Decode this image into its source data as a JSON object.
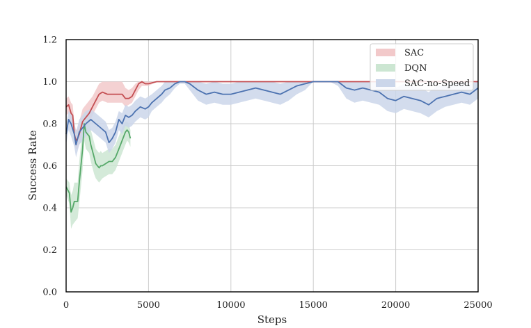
{
  "chart_data": {
    "type": "line",
    "title": "",
    "xlabel": "Steps",
    "ylabel": "Success Rate",
    "xlim": [
      0,
      25000
    ],
    "ylim": [
      0.0,
      1.2
    ],
    "x_ticks": [
      0,
      5000,
      10000,
      15000,
      20000,
      25000
    ],
    "y_ticks": [
      0.0,
      0.2,
      0.4,
      0.6,
      0.8,
      1.0,
      1.2
    ],
    "y_tick_labels": [
      "0.0",
      "0.2",
      "0.4",
      "0.6",
      "0.8",
      "1.0",
      "1.2"
    ],
    "grid": true,
    "legend_position": "top-right",
    "series": [
      {
        "name": "SAC",
        "color": "#c44e52",
        "band_color": "#f2c9ca",
        "x": [
          0,
          150,
          300,
          400,
          500,
          600,
          700,
          800,
          900,
          1000,
          1100,
          1200,
          1400,
          1600,
          1800,
          2000,
          2200,
          2500,
          3000,
          3400,
          3600,
          3800,
          4000,
          4200,
          4400,
          4600,
          4800,
          5000,
          5500,
          6000,
          7000,
          10000,
          15000,
          20000,
          25000
        ],
        "y": [
          0.88,
          0.89,
          0.85,
          0.84,
          0.75,
          0.72,
          0.73,
          0.75,
          0.78,
          0.81,
          0.82,
          0.83,
          0.85,
          0.88,
          0.91,
          0.94,
          0.95,
          0.94,
          0.94,
          0.94,
          0.92,
          0.92,
          0.93,
          0.96,
          0.99,
          1.0,
          0.99,
          0.99,
          1.0,
          1.0,
          1.0,
          1.0,
          1.0,
          1.0,
          1.0
        ],
        "lower": [
          0.84,
          0.85,
          0.8,
          0.78,
          0.7,
          0.68,
          0.68,
          0.7,
          0.72,
          0.74,
          0.76,
          0.78,
          0.8,
          0.84,
          0.87,
          0.9,
          0.91,
          0.9,
          0.9,
          0.9,
          0.88,
          0.89,
          0.9,
          0.93,
          0.96,
          0.98,
          0.98,
          0.98,
          1.0,
          1.0,
          1.0,
          1.0,
          1.0,
          1.0,
          1.0
        ],
        "upper": [
          0.92,
          0.93,
          0.9,
          0.89,
          0.8,
          0.77,
          0.78,
          0.81,
          0.84,
          0.87,
          0.88,
          0.89,
          0.91,
          0.93,
          0.96,
          0.99,
          1.0,
          1.0,
          1.0,
          1.0,
          0.97,
          0.96,
          0.97,
          0.99,
          1.0,
          1.0,
          1.0,
          1.0,
          1.0,
          1.0,
          1.0,
          1.0,
          1.0,
          1.0,
          1.0
        ]
      },
      {
        "name": "DQN",
        "color": "#55a868",
        "band_color": "#cce6d2",
        "x": [
          0,
          200,
          300,
          400,
          500,
          600,
          700,
          800,
          900,
          1000,
          1100,
          1200,
          1300,
          1400,
          1500,
          1600,
          1700,
          1800,
          1900,
          2000,
          2100,
          2200,
          2400,
          2600,
          2800,
          3000,
          3200,
          3400,
          3600,
          3700,
          3800,
          3900
        ],
        "y": [
          0.5,
          0.47,
          0.38,
          0.4,
          0.43,
          0.43,
          0.43,
          0.52,
          0.6,
          0.68,
          0.8,
          0.76,
          0.75,
          0.74,
          0.7,
          0.67,
          0.64,
          0.61,
          0.6,
          0.59,
          0.6,
          0.6,
          0.61,
          0.62,
          0.62,
          0.64,
          0.68,
          0.72,
          0.76,
          0.77,
          0.76,
          0.73
        ],
        "lower": [
          0.46,
          0.42,
          0.3,
          0.32,
          0.33,
          0.34,
          0.35,
          0.42,
          0.5,
          0.58,
          0.72,
          0.68,
          0.67,
          0.66,
          0.62,
          0.59,
          0.56,
          0.54,
          0.53,
          0.52,
          0.53,
          0.54,
          0.55,
          0.56,
          0.56,
          0.58,
          0.62,
          0.66,
          0.7,
          0.72,
          0.71,
          0.69
        ],
        "upper": [
          0.54,
          0.52,
          0.46,
          0.48,
          0.52,
          0.52,
          0.52,
          0.62,
          0.7,
          0.78,
          0.86,
          0.83,
          0.82,
          0.81,
          0.77,
          0.74,
          0.71,
          0.68,
          0.67,
          0.66,
          0.67,
          0.66,
          0.67,
          0.68,
          0.68,
          0.7,
          0.74,
          0.78,
          0.81,
          0.81,
          0.8,
          0.77
        ]
      },
      {
        "name": "SAC-no-Speed",
        "color": "#4c72b0",
        "band_color": "#cbd6ea",
        "x": [
          0,
          150,
          300,
          500,
          600,
          700,
          800,
          1000,
          1200,
          1500,
          1800,
          2100,
          2400,
          2600,
          2800,
          3000,
          3200,
          3400,
          3600,
          3800,
          4000,
          4200,
          4500,
          4800,
          5000,
          5200,
          5500,
          5800,
          6000,
          6300,
          6600,
          6900,
          7200,
          7500,
          8000,
          8500,
          9000,
          9500,
          10000,
          10500,
          11000,
          11500,
          12000,
          12500,
          13000,
          13500,
          14000,
          14500,
          15000,
          15500,
          16000,
          16500,
          17000,
          17500,
          18000,
          18500,
          19000,
          19500,
          20000,
          20500,
          21000,
          21500,
          22000,
          22500,
          23000,
          23500,
          24000,
          24500,
          25000
        ],
        "y": [
          0.75,
          0.82,
          0.8,
          0.75,
          0.7,
          0.73,
          0.76,
          0.78,
          0.8,
          0.82,
          0.8,
          0.78,
          0.76,
          0.71,
          0.73,
          0.76,
          0.82,
          0.8,
          0.84,
          0.83,
          0.84,
          0.86,
          0.88,
          0.87,
          0.88,
          0.9,
          0.92,
          0.94,
          0.96,
          0.97,
          0.99,
          1.0,
          1.0,
          0.99,
          0.96,
          0.94,
          0.95,
          0.94,
          0.94,
          0.95,
          0.96,
          0.97,
          0.96,
          0.95,
          0.94,
          0.96,
          0.98,
          0.99,
          1.0,
          1.0,
          1.0,
          1.0,
          0.97,
          0.96,
          0.97,
          0.96,
          0.95,
          0.92,
          0.91,
          0.93,
          0.92,
          0.91,
          0.89,
          0.92,
          0.93,
          0.94,
          0.95,
          0.94,
          0.97
        ],
        "lower": [
          0.7,
          0.77,
          0.74,
          0.69,
          0.64,
          0.67,
          0.7,
          0.72,
          0.74,
          0.77,
          0.75,
          0.73,
          0.71,
          0.66,
          0.68,
          0.71,
          0.77,
          0.75,
          0.79,
          0.78,
          0.79,
          0.81,
          0.83,
          0.82,
          0.83,
          0.86,
          0.88,
          0.9,
          0.92,
          0.94,
          0.97,
          0.99,
          0.99,
          0.96,
          0.91,
          0.89,
          0.9,
          0.89,
          0.89,
          0.9,
          0.91,
          0.92,
          0.91,
          0.9,
          0.89,
          0.91,
          0.94,
          0.96,
          1.0,
          1.0,
          1.0,
          0.98,
          0.92,
          0.9,
          0.91,
          0.9,
          0.89,
          0.86,
          0.85,
          0.87,
          0.86,
          0.85,
          0.83,
          0.86,
          0.88,
          0.89,
          0.9,
          0.89,
          0.92
        ],
        "upper": [
          0.8,
          0.86,
          0.85,
          0.81,
          0.76,
          0.79,
          0.82,
          0.84,
          0.86,
          0.87,
          0.85,
          0.83,
          0.81,
          0.77,
          0.78,
          0.81,
          0.86,
          0.85,
          0.89,
          0.88,
          0.89,
          0.91,
          0.93,
          0.92,
          0.93,
          0.94,
          0.96,
          0.98,
          1.0,
          1.0,
          1.0,
          1.0,
          1.0,
          1.0,
          1.0,
          0.99,
          1.0,
          0.99,
          0.99,
          1.0,
          1.0,
          1.0,
          1.0,
          1.0,
          0.99,
          1.0,
          1.0,
          1.0,
          1.0,
          1.0,
          1.0,
          1.0,
          1.0,
          1.0,
          1.0,
          1.0,
          1.0,
          0.98,
          0.97,
          0.99,
          0.98,
          0.97,
          0.95,
          0.98,
          0.98,
          0.99,
          1.0,
          0.99,
          1.0
        ]
      }
    ]
  }
}
